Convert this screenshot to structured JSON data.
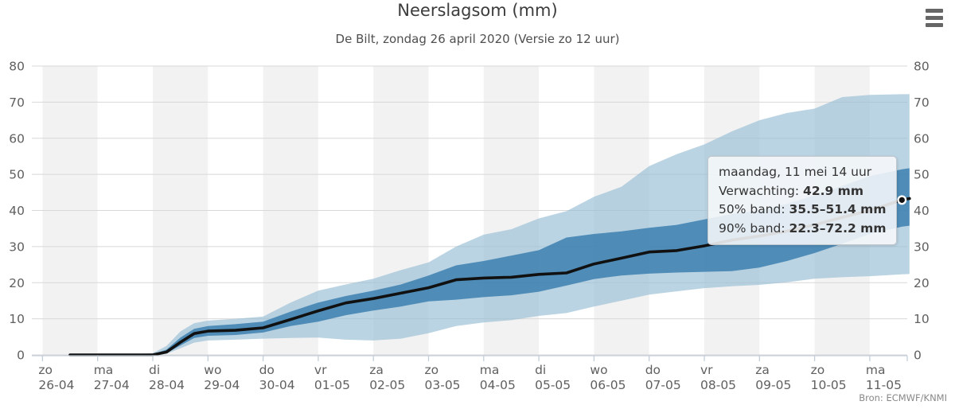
{
  "header": {
    "title": "Neerslagsom (mm)",
    "subtitle": "De Bilt, zondag 26 april 2020 (Versie zo 12 uur)"
  },
  "menu": {
    "icon": "hamburger-menu-icon"
  },
  "credit": "Bron: ECMWF/KNMI",
  "tooltip": {
    "header": "maandag, 11 mei 14 uur",
    "rows": [
      {
        "label": "Verwachting: ",
        "value": "42.9 mm"
      },
      {
        "label": "50% band: ",
        "value": "35.5–51.4 mm"
      },
      {
        "label": "90% band: ",
        "value": "22.3–72.2 mm"
      }
    ]
  },
  "colors": {
    "band_90": "rgba(151,189,212,0.65)",
    "band_50": "rgba(55,125,175,0.82)",
    "forecast_line": "#111111",
    "day_stripe_even": "#f2f2f2",
    "day_stripe_odd": "#ffffff",
    "gridline": "#d8d8d8",
    "axis_line": "#c3ced8",
    "axis_label": "#606060",
    "marker_fill": "#111111",
    "marker_ring": "#ffffff"
  },
  "chart_data": {
    "type": "line",
    "title": "Neerslagsom (mm)",
    "subtitle": "De Bilt, zondag 26 april 2020 (Versie zo 12 uur)",
    "ylabel": "mm",
    "ylim": [
      0,
      80
    ],
    "yticks": [
      0,
      10,
      20,
      30,
      40,
      50,
      60,
      70,
      80
    ],
    "grid": true,
    "legend": false,
    "x_unit": "days since 2020-04-26 00:00",
    "x_days": [
      {
        "weekday": "zo",
        "date": "26-04"
      },
      {
        "weekday": "ma",
        "date": "27-04"
      },
      {
        "weekday": "di",
        "date": "28-04"
      },
      {
        "weekday": "wo",
        "date": "29-04"
      },
      {
        "weekday": "do",
        "date": "30-04"
      },
      {
        "weekday": "vr",
        "date": "01-05"
      },
      {
        "weekday": "za",
        "date": "02-05"
      },
      {
        "weekday": "zo",
        "date": "03-05"
      },
      {
        "weekday": "ma",
        "date": "04-05"
      },
      {
        "weekday": "di",
        "date": "05-05"
      },
      {
        "weekday": "wo",
        "date": "06-05"
      },
      {
        "weekday": "do",
        "date": "07-05"
      },
      {
        "weekday": "vr",
        "date": "08-05"
      },
      {
        "weekday": "za",
        "date": "09-05"
      },
      {
        "weekday": "zo",
        "date": "10-05"
      },
      {
        "weekday": "ma",
        "date": "11-05"
      }
    ],
    "x": [
      0.5,
      1,
      1.5,
      2,
      2.25,
      2.5,
      2.75,
      3,
      3.5,
      4,
      4.5,
      5,
      5.5,
      6,
      6.5,
      7,
      7.5,
      8,
      8.5,
      9,
      9.5,
      10,
      10.5,
      11,
      11.5,
      12,
      12.5,
      13,
      13.5,
      14,
      14.5,
      15,
      15.583,
      15.72
    ],
    "series": [
      {
        "name": "90% band",
        "type": "arearange",
        "color": "rgba(151,189,212,0.65)",
        "lower": [
          0,
          0,
          0,
          0,
          0.3,
          1.8,
          3.4,
          4,
          4.2,
          4.5,
          4.7,
          4.8,
          4.2,
          4,
          4.5,
          6,
          8,
          9,
          9.6,
          10.8,
          11.6,
          13.4,
          15,
          16.7,
          17.6,
          18.5,
          19,
          19.4,
          20.1,
          21.1,
          21.5,
          21.8,
          22.3,
          22.4
        ],
        "upper": [
          0,
          0,
          0,
          0.5,
          2.5,
          6.5,
          8.8,
          9.5,
          10,
          10.6,
          14.5,
          17.8,
          19.5,
          21.1,
          23.5,
          25.6,
          30,
          33.3,
          34.8,
          37.8,
          39.8,
          43.8,
          46.6,
          52.3,
          55.6,
          58.3,
          61.9,
          65,
          67,
          68.2,
          71.4,
          72,
          72.2,
          72.2
        ]
      },
      {
        "name": "50% band",
        "type": "arearange",
        "color": "rgba(55,125,175,0.82)",
        "lower": [
          0,
          0,
          0,
          0,
          0.5,
          2.6,
          4.7,
          5.3,
          5.5,
          6.2,
          8,
          9.2,
          11,
          12.3,
          13.4,
          14.8,
          15.3,
          16,
          16.5,
          17.5,
          19.2,
          21,
          22,
          22.5,
          22.8,
          23,
          23.2,
          24.2,
          26,
          28.2,
          30.8,
          33.5,
          35.5,
          35.8
        ],
        "upper": [
          0,
          0,
          0,
          0.2,
          1.5,
          4.8,
          7.2,
          8,
          8.5,
          9.2,
          12,
          14.5,
          16.3,
          17.8,
          19.5,
          22,
          24.8,
          26,
          27.5,
          29,
          32.5,
          33.5,
          34.2,
          35.2,
          36,
          37.5,
          39,
          40,
          41.8,
          44.2,
          46.8,
          49.5,
          51.4,
          51.7
        ]
      },
      {
        "name": "Verwachting",
        "type": "line",
        "color": "#111111",
        "values": [
          0,
          0,
          0,
          0,
          0.8,
          3.5,
          5.9,
          6.6,
          6.8,
          7.5,
          9.8,
          12.2,
          14.4,
          15.6,
          17.1,
          18.6,
          20.8,
          21.3,
          21.5,
          22.3,
          22.7,
          25.2,
          26.8,
          28.5,
          28.9,
          30.2,
          31.8,
          32.9,
          34.3,
          36,
          38.1,
          40,
          42.9,
          43.3
        ]
      }
    ],
    "highlight_point": {
      "x": 15.583,
      "value": 42.9,
      "label": "maandag, 11 mei 14 uur"
    }
  }
}
